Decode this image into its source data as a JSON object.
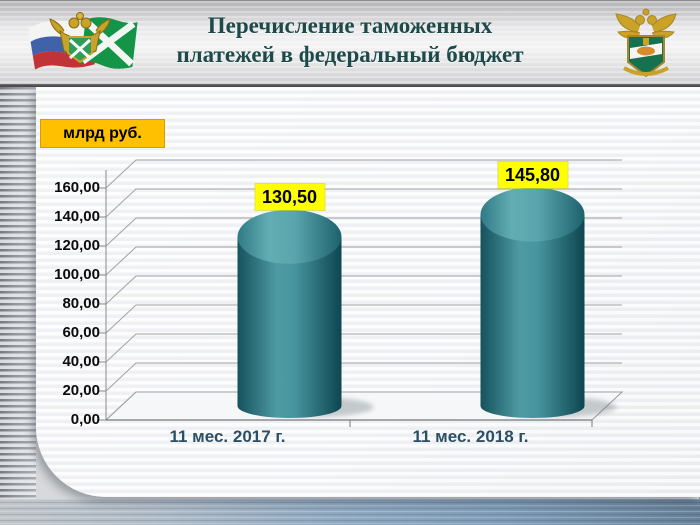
{
  "header": {
    "title_line1": "Перечисление таможенных",
    "title_line2": "платежей в федеральный бюджет"
  },
  "chart_data": {
    "type": "bar",
    "style": "3d-cylinder",
    "title": "Перечисление таможенных платежей в федеральный бюджет",
    "unit_label": "млрд руб.",
    "categories": [
      "11 мес. 2017 г.",
      "11 мес. 2018 г."
    ],
    "values": [
      130.5,
      145.8
    ],
    "value_labels": [
      "130,50",
      "145,80"
    ],
    "ylim": [
      0,
      160
    ],
    "y_tick_step": 20,
    "y_tick_labels": [
      "0,00",
      "20,00",
      "40,00",
      "60,00",
      "80,00",
      "100,00",
      "120,00",
      "140,00",
      "160,00"
    ],
    "grid": true,
    "legend": false,
    "colors": {
      "bar_mid": "#47949e",
      "bar_dark": "#0d4650",
      "bar_light": "#63acb4",
      "value_label_bg": "#ffff00",
      "unit_label_bg": "#ffc000",
      "category_text": "#2c4f63",
      "title_text": "#1d4a49",
      "gridline": "#a2a2a4"
    }
  }
}
